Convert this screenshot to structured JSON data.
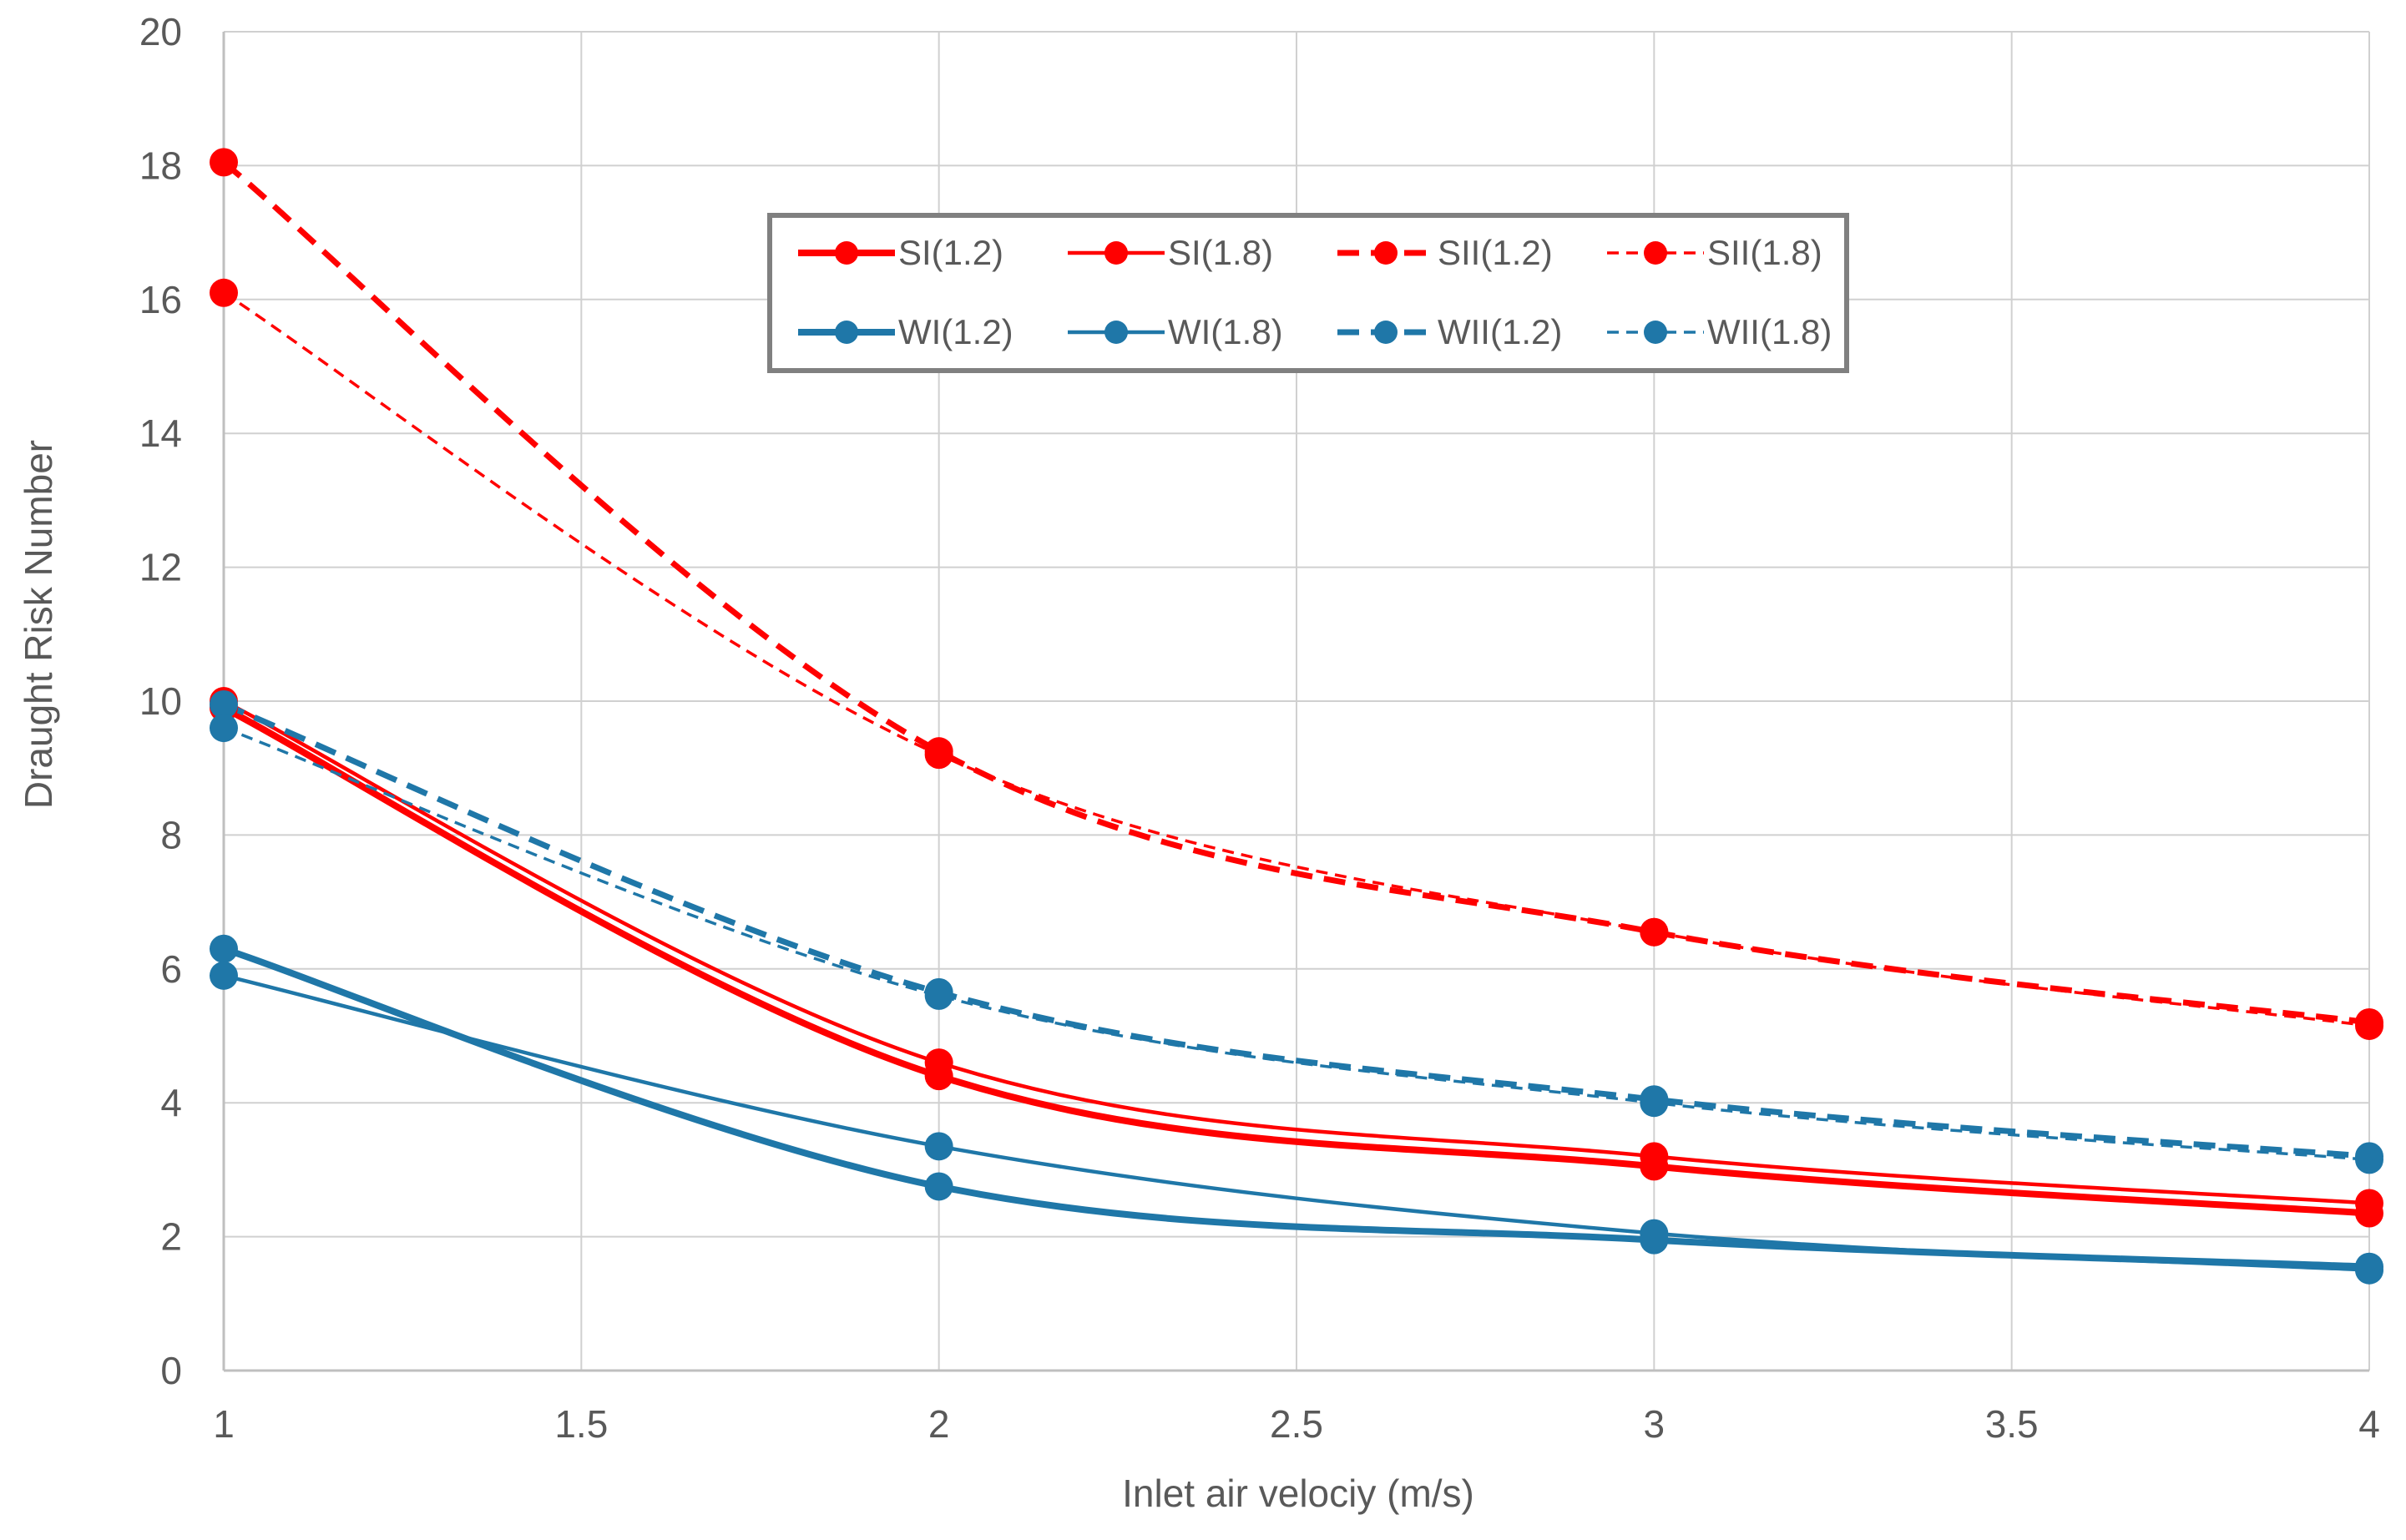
{
  "chart_data": {
    "type": "line",
    "title": "",
    "xlabel": "Inlet air velociy (m/s)",
    "ylabel": "Draught Risk Number",
    "xlim": [
      1,
      4
    ],
    "ylim": [
      0,
      20
    ],
    "x_ticks": [
      "1",
      "1.5",
      "2",
      "2.5",
      "3",
      "3.5",
      "4"
    ],
    "y_ticks": [
      "0",
      "2",
      "4",
      "6",
      "8",
      "10",
      "12",
      "14",
      "16",
      "18",
      "20"
    ],
    "grid": true,
    "legend_position": "top-center",
    "x": [
      1,
      2,
      3,
      4
    ],
    "series": [
      {
        "name": "SI(1.2)",
        "color": "#ff0000",
        "style": "solid-thick",
        "values": [
          9.9,
          4.4,
          3.05,
          2.35
        ]
      },
      {
        "name": "SI(1.8)",
        "color": "#ff0000",
        "style": "solid-thin",
        "values": [
          10.0,
          4.6,
          3.2,
          2.5
        ]
      },
      {
        "name": "SII(1.2)",
        "color": "#ff0000",
        "style": "dashed-thick",
        "values": [
          18.05,
          9.25,
          6.55,
          5.2
        ]
      },
      {
        "name": "SII(1.8)",
        "color": "#ff0000",
        "style": "dashed-thin",
        "values": [
          16.1,
          9.2,
          6.55,
          5.15
        ]
      },
      {
        "name": "WI(1.2)",
        "color": "#1f77a8",
        "style": "solid-thick",
        "values": [
          6.3,
          2.75,
          1.95,
          1.55
        ]
      },
      {
        "name": "WI(1.8)",
        "color": "#1f77a8",
        "style": "solid-thin",
        "values": [
          5.9,
          3.35,
          2.05,
          1.5
        ]
      },
      {
        "name": "WII(1.2)",
        "color": "#1f77a8",
        "style": "dashed-thick",
        "values": [
          9.95,
          5.65,
          4.05,
          3.2
        ]
      },
      {
        "name": "WII(1.8)",
        "color": "#1f77a8",
        "style": "dashed-thin",
        "values": [
          9.6,
          5.6,
          4.0,
          3.15
        ]
      }
    ]
  }
}
